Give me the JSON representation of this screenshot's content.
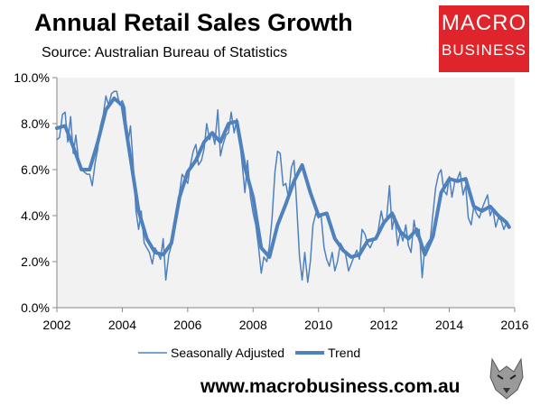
{
  "header": {
    "title": "Annual Retail Sales Growth",
    "source": "Source: Australian Bureau of Statistics"
  },
  "logo": {
    "line1": "MACRO",
    "line2": "BUSINESS"
  },
  "footer": {
    "url": "www.macrobusiness.com.au"
  },
  "chart_data": {
    "type": "line",
    "title": "Annual Retail Sales Growth",
    "xlabel": "",
    "ylabel": "",
    "xlim": [
      2002,
      2016
    ],
    "ylim": [
      0,
      10
    ],
    "x_ticks": [
      "2002",
      "2004",
      "2006",
      "2008",
      "2010",
      "2012",
      "2014",
      "2016"
    ],
    "y_ticks": [
      "0.0%",
      "2.0%",
      "4.0%",
      "6.0%",
      "8.0%",
      "10.0%"
    ],
    "grid": false,
    "legend_position": "bottom",
    "colors": {
      "line": "#4f81bd",
      "plot_bg": "#f2f2f2",
      "axis": "#888888"
    },
    "series": [
      {
        "name": "Seasonally Adjusted",
        "style": "thin",
        "x": [
          2002.0,
          2002.08,
          2002.17,
          2002.25,
          2002.33,
          2002.42,
          2002.5,
          2002.58,
          2002.67,
          2002.75,
          2002.83,
          2002.92,
          2003.0,
          2003.08,
          2003.17,
          2003.25,
          2003.33,
          2003.42,
          2003.5,
          2003.58,
          2003.67,
          2003.75,
          2003.83,
          2003.92,
          2004.0,
          2004.08,
          2004.17,
          2004.25,
          2004.33,
          2004.42,
          2004.5,
          2004.58,
          2004.67,
          2004.75,
          2004.83,
          2004.92,
          2005.0,
          2005.08,
          2005.17,
          2005.25,
          2005.33,
          2005.42,
          2005.5,
          2005.58,
          2005.67,
          2005.75,
          2005.83,
          2005.92,
          2006.0,
          2006.08,
          2006.17,
          2006.25,
          2006.33,
          2006.42,
          2006.5,
          2006.58,
          2006.67,
          2006.75,
          2006.83,
          2006.92,
          2007.0,
          2007.08,
          2007.17,
          2007.25,
          2007.33,
          2007.42,
          2007.5,
          2007.58,
          2007.67,
          2007.75,
          2007.83,
          2007.92,
          2008.0,
          2008.08,
          2008.17,
          2008.25,
          2008.33,
          2008.42,
          2008.5,
          2008.58,
          2008.67,
          2008.75,
          2008.83,
          2008.92,
          2009.0,
          2009.08,
          2009.17,
          2009.25,
          2009.33,
          2009.42,
          2009.5,
          2009.58,
          2009.67,
          2009.75,
          2009.83,
          2009.92,
          2010.0,
          2010.08,
          2010.17,
          2010.25,
          2010.33,
          2010.42,
          2010.5,
          2010.58,
          2010.67,
          2010.75,
          2010.83,
          2010.92,
          2011.0,
          2011.08,
          2011.17,
          2011.25,
          2011.33,
          2011.42,
          2011.5,
          2011.58,
          2011.67,
          2011.75,
          2011.83,
          2011.92,
          2012.0,
          2012.08,
          2012.17,
          2012.25,
          2012.33,
          2012.42,
          2012.5,
          2012.58,
          2012.67,
          2012.75,
          2012.83,
          2012.92,
          2013.0,
          2013.08,
          2013.17,
          2013.25,
          2013.33,
          2013.42,
          2013.5,
          2013.58,
          2013.67,
          2013.75,
          2013.83,
          2013.92,
          2014.0,
          2014.08,
          2014.17,
          2014.25,
          2014.33,
          2014.42,
          2014.5,
          2014.58,
          2014.67,
          2014.75,
          2014.83,
          2014.92,
          2015.0,
          2015.08,
          2015.17,
          2015.25,
          2015.33,
          2015.42,
          2015.5,
          2015.58,
          2015.67,
          2015.75,
          2015.83
        ],
        "values": [
          7.3,
          7.4,
          8.4,
          8.5,
          7.2,
          8.3,
          6.7,
          7.5,
          6.3,
          6.1,
          5.9,
          5.8,
          5.8,
          5.3,
          6.3,
          6.9,
          7.9,
          8.4,
          9.2,
          8.8,
          9.3,
          9.4,
          9.4,
          8.8,
          9.0,
          8.7,
          7.1,
          7.9,
          6.3,
          4.2,
          3.4,
          4.2,
          2.8,
          2.6,
          2.4,
          1.9,
          2.6,
          2.4,
          2.1,
          3.0,
          1.2,
          2.3,
          2.7,
          3.7,
          4.1,
          5.0,
          5.8,
          5.6,
          5.4,
          6.2,
          6.8,
          7.1,
          6.2,
          6.4,
          6.9,
          8.0,
          7.3,
          7.6,
          7.1,
          8.6,
          6.6,
          7.1,
          7.5,
          7.6,
          8.5,
          7.6,
          8.2,
          7.4,
          6.2,
          5.0,
          6.4,
          4.8,
          4.1,
          3.6,
          2.6,
          1.5,
          2.2,
          2.0,
          2.7,
          3.9,
          5.9,
          6.8,
          6.7,
          5.3,
          5.4,
          4.8,
          6.1,
          6.4,
          4.5,
          2.2,
          1.2,
          2.4,
          1.1,
          2.0,
          3.6,
          4.1,
          3.9,
          4.0,
          2.6,
          2.1,
          1.8,
          2.4,
          1.6,
          2.0,
          2.8,
          2.6,
          2.3,
          1.6,
          1.9,
          2.2,
          2.5,
          2.1,
          3.4,
          3.2,
          2.8,
          2.6,
          2.9,
          3.0,
          3.4,
          4.2,
          3.6,
          3.8,
          5.3,
          3.4,
          4.0,
          2.7,
          3.3,
          2.9,
          3.6,
          2.7,
          2.4,
          3.8,
          3.1,
          3.4,
          1.3,
          2.6,
          2.8,
          3.0,
          4.1,
          5.2,
          5.8,
          6.0,
          5.1,
          4.9,
          5.7,
          4.8,
          5.5,
          5.6,
          5.9,
          4.9,
          5.3,
          3.9,
          3.6,
          4.4,
          4.1,
          3.9,
          4.3,
          4.6,
          4.9,
          4.0,
          4.3,
          3.5,
          3.9,
          3.8,
          3.4,
          3.7,
          3.5
        ]
      },
      {
        "name": "Trend",
        "style": "thick",
        "x": [
          2002.0,
          2002.25,
          2002.5,
          2002.75,
          2003.0,
          2003.25,
          2003.5,
          2003.75,
          2004.0,
          2004.25,
          2004.5,
          2004.75,
          2005.0,
          2005.25,
          2005.5,
          2005.75,
          2006.0,
          2006.25,
          2006.5,
          2006.75,
          2007.0,
          2007.25,
          2007.5,
          2007.75,
          2008.0,
          2008.25,
          2008.5,
          2008.75,
          2009.0,
          2009.25,
          2009.5,
          2009.75,
          2010.0,
          2010.25,
          2010.5,
          2010.75,
          2011.0,
          2011.25,
          2011.5,
          2011.75,
          2012.0,
          2012.25,
          2012.5,
          2012.75,
          2013.0,
          2013.25,
          2013.5,
          2013.75,
          2014.0,
          2014.25,
          2014.5,
          2014.75,
          2015.0,
          2015.25,
          2015.5,
          2015.75,
          2015.83
        ],
        "values": [
          7.8,
          7.9,
          7.0,
          6.0,
          6.0,
          7.2,
          8.6,
          9.1,
          8.8,
          6.5,
          4.2,
          3.0,
          2.4,
          2.3,
          2.8,
          4.8,
          5.9,
          6.4,
          7.2,
          7.6,
          7.2,
          8.0,
          8.1,
          6.1,
          4.8,
          2.6,
          2.2,
          3.6,
          4.5,
          5.5,
          6.2,
          5.0,
          4.0,
          4.1,
          3.0,
          2.5,
          2.2,
          2.3,
          2.9,
          3.0,
          3.7,
          4.1,
          3.3,
          3.0,
          3.4,
          2.3,
          3.1,
          5.0,
          5.6,
          5.5,
          5.6,
          4.4,
          4.2,
          4.4,
          4.0,
          3.7,
          3.5
        ]
      }
    ]
  }
}
